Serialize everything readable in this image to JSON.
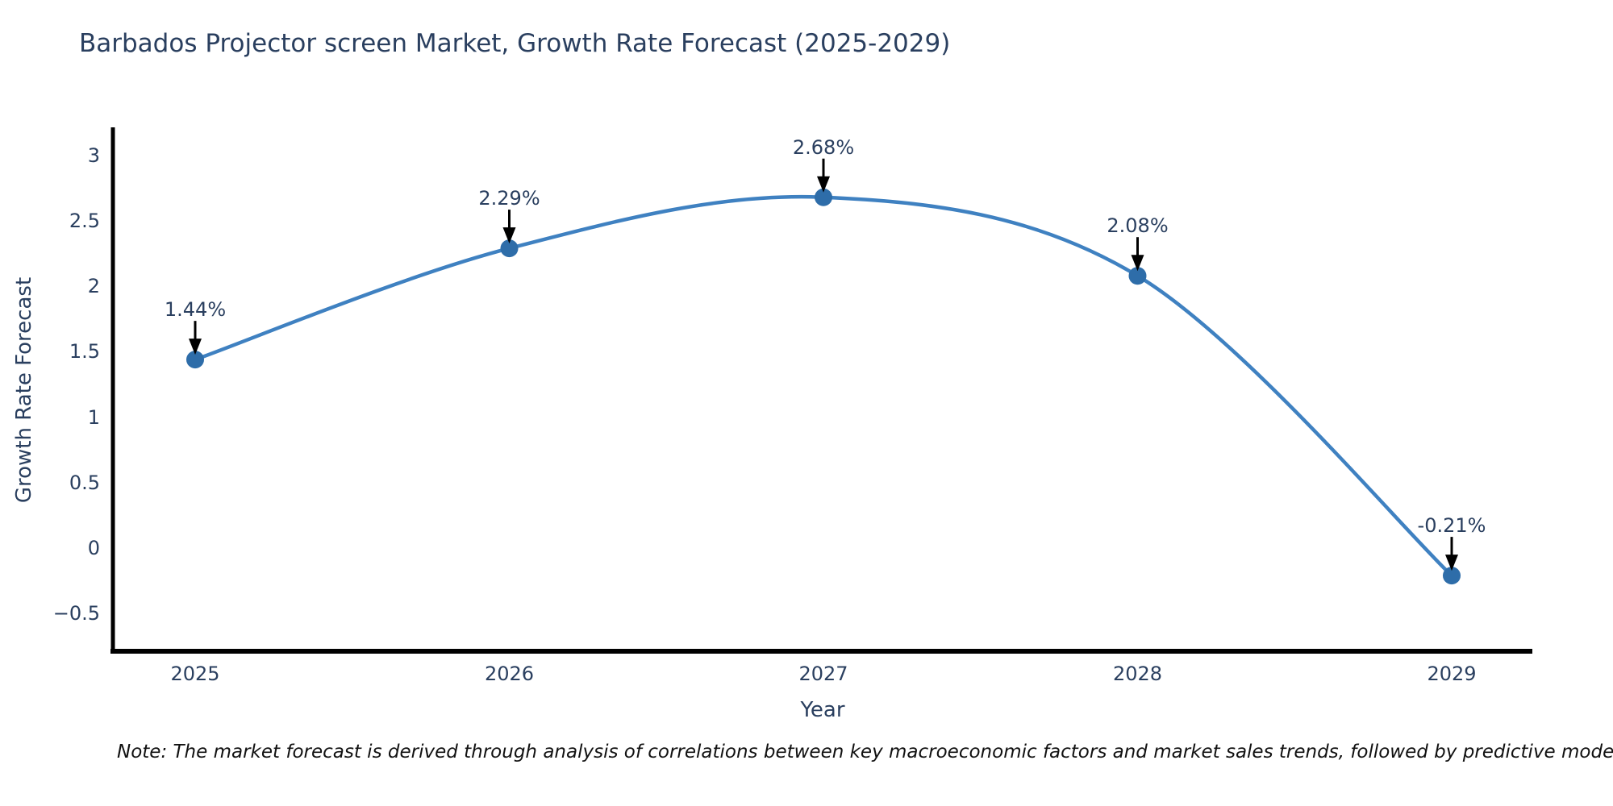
{
  "chart_data": {
    "type": "line",
    "title": "Barbados Projector screen Market, Growth Rate Forecast (2025-2029)",
    "xlabel": "Year",
    "ylabel": "Growth Rate Forecast",
    "categories": [
      "2025",
      "2026",
      "2027",
      "2028",
      "2029"
    ],
    "series": [
      {
        "name": "Growth Rate Forecast",
        "values": [
          1.44,
          2.29,
          2.68,
          2.08,
          -0.21
        ],
        "point_labels": [
          "1.44%",
          "2.29%",
          "2.68%",
          "2.08%",
          "-0.21%"
        ]
      }
    ],
    "yticks": [
      3,
      2.5,
      2,
      1.5,
      1,
      0.5,
      0,
      -0.5
    ],
    "ylim": [
      -0.78,
      3.21
    ],
    "line_shape": "spline",
    "grid": false,
    "legend_position": "none",
    "line_color": "#3f81c1",
    "marker_color": "#2e6da9",
    "axis_line_color": "#000000",
    "annotation_arrow_color": "#000000",
    "text_color": "#2a3f5f"
  },
  "note": "Note: The market forecast is derived through analysis of correlations between key macroeconomic factors and market sales trends, followed by predictive modeling to project future sa"
}
